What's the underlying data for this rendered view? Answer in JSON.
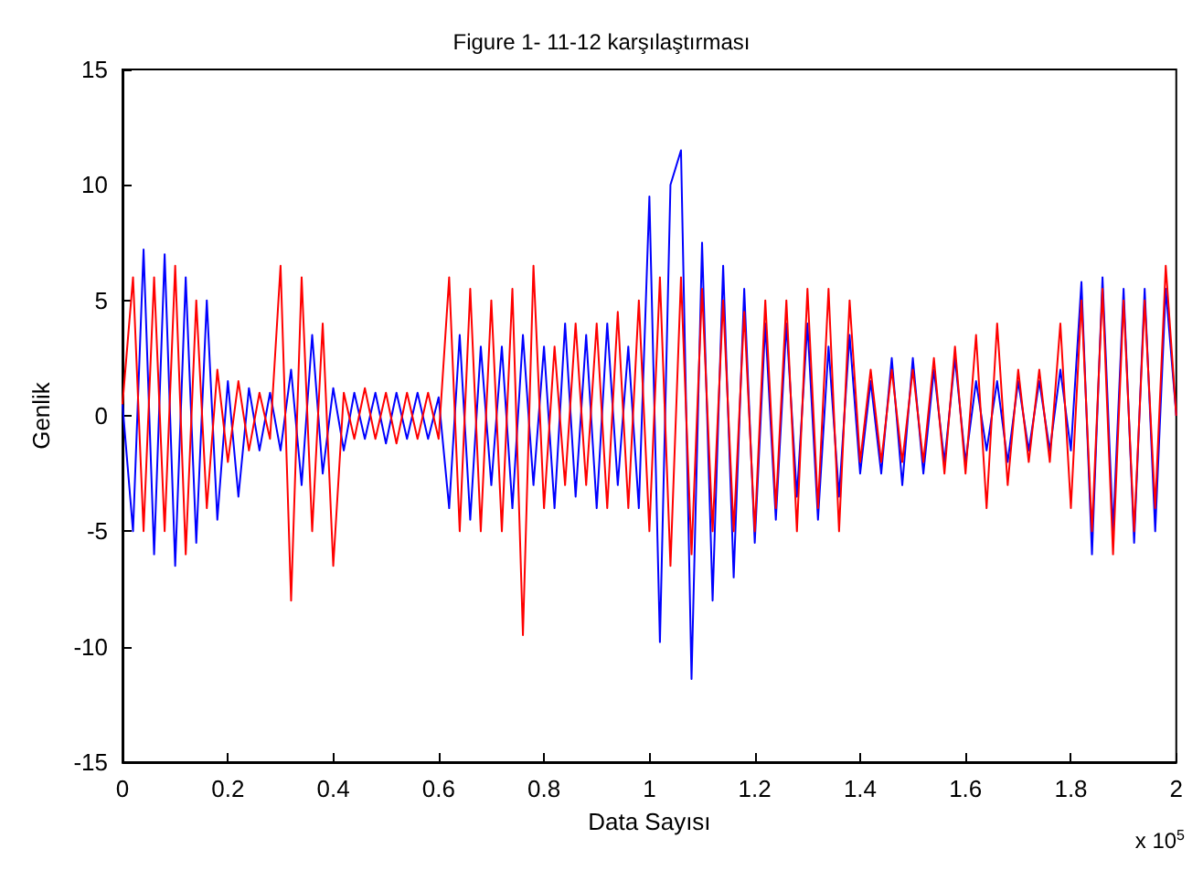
{
  "chart_data": {
    "type": "line",
    "title": "Figure 1- 11-12 karşılaştırması",
    "xlabel": "Data Sayısı",
    "ylabel": "Genlik",
    "annotations": [
      "x 10$^{5}$"
    ],
    "x": [
      0,
      0.02,
      0.04,
      0.06,
      0.08,
      0.1,
      0.12,
      0.14,
      0.16,
      0.18,
      0.2,
      0.22,
      0.24,
      0.26,
      0.28,
      0.3,
      0.32,
      0.34,
      0.36,
      0.38,
      0.4,
      0.42,
      0.44,
      0.46,
      0.48,
      0.5,
      0.52,
      0.54,
      0.56,
      0.58,
      0.6,
      0.62,
      0.64,
      0.66,
      0.68,
      0.7,
      0.72,
      0.74,
      0.76,
      0.78,
      0.8,
      0.82,
      0.84,
      0.86,
      0.88,
      0.9,
      0.92,
      0.94,
      0.96,
      0.98,
      1.0,
      1.02,
      1.04,
      1.06,
      1.08,
      1.1,
      1.12,
      1.14,
      1.16,
      1.18,
      1.2,
      1.22,
      1.24,
      1.26,
      1.28,
      1.3,
      1.32,
      1.34,
      1.36,
      1.38,
      1.4,
      1.42,
      1.44,
      1.46,
      1.48,
      1.5,
      1.52,
      1.54,
      1.56,
      1.58,
      1.6,
      1.62,
      1.64,
      1.66,
      1.68,
      1.7,
      1.72,
      1.74,
      1.76,
      1.78,
      1.8,
      1.82,
      1.84,
      1.86,
      1.88,
      1.9,
      1.92,
      1.94,
      1.96,
      1.98,
      2.0
    ],
    "series": [
      {
        "color": "#0000ff",
        "values": [
          0.5,
          -5,
          7.2,
          -6,
          7,
          -6.5,
          6,
          -5.5,
          5,
          -4.5,
          1.5,
          -3.5,
          1.2,
          -1.5,
          1,
          -1.5,
          2,
          -3,
          3.5,
          -2.5,
          1.2,
          -1.5,
          1,
          -1,
          1,
          -1.2,
          1,
          -1,
          1,
          -1,
          0.8,
          -4,
          3.5,
          -4.5,
          3,
          -3,
          3,
          -4,
          3.5,
          -3,
          3,
          -4,
          4,
          -3.5,
          3.5,
          -4,
          4,
          -3,
          3,
          -4,
          9.5,
          -9.8,
          10,
          11.5,
          -11.4,
          7.5,
          -8,
          6.5,
          -7,
          5.5,
          -5.5,
          4,
          -4.5,
          4,
          -3.5,
          4,
          -4.5,
          3,
          -3.5,
          3.5,
          -2.5,
          1.5,
          -2.5,
          2.5,
          -3,
          2.5,
          -2.5,
          2,
          -2,
          2.5,
          -2,
          1.5,
          -1.5,
          1.5,
          -2,
          1.5,
          -1.5,
          1.5,
          -1.5,
          2,
          -1.5,
          5.8,
          -6,
          6,
          -5,
          5.5,
          -5.5,
          5.5,
          -5,
          5.5,
          0
        ]
      },
      {
        "color": "#ff0000",
        "values": [
          0.5,
          6,
          -5,
          6,
          -5,
          6.5,
          -6,
          5,
          -4,
          2,
          -2,
          1.5,
          -1.5,
          1,
          -1,
          6.5,
          -8,
          6,
          -5,
          4,
          -6.5,
          1,
          -1,
          1.2,
          -1,
          1,
          -1.2,
          1,
          -1,
          1,
          -1,
          6,
          -5,
          5.5,
          -5,
          5,
          -5,
          5.5,
          -9.5,
          6.5,
          -4,
          3,
          -3,
          4,
          -3,
          4,
          -4,
          4.5,
          -4,
          5,
          -5,
          6,
          -6.5,
          6,
          -6,
          5.5,
          -5,
          5,
          -5,
          4.5,
          -5,
          5,
          -4,
          5,
          -5,
          5.5,
          -4,
          5.5,
          -5,
          5,
          -2,
          2,
          -2,
          2,
          -2,
          2,
          -2,
          2.5,
          -2.5,
          3,
          -2.5,
          3.5,
          -4,
          4,
          -3,
          2,
          -2,
          2,
          -2,
          4,
          -4,
          5,
          -5,
          5.5,
          -6,
          5,
          -5,
          5,
          -4,
          6.5,
          0
        ]
      }
    ],
    "xlim": [
      0,
      2
    ],
    "xticks": [
      0,
      0.2,
      0.4,
      0.6,
      0.8,
      1,
      1.2,
      1.4,
      1.6,
      1.8,
      2
    ],
    "ylim": [
      -15,
      15
    ],
    "yticks": [
      -15,
      -10,
      -5,
      0,
      5,
      10,
      15
    ],
    "grid": false,
    "marker": "none",
    "line_style": "solid"
  }
}
